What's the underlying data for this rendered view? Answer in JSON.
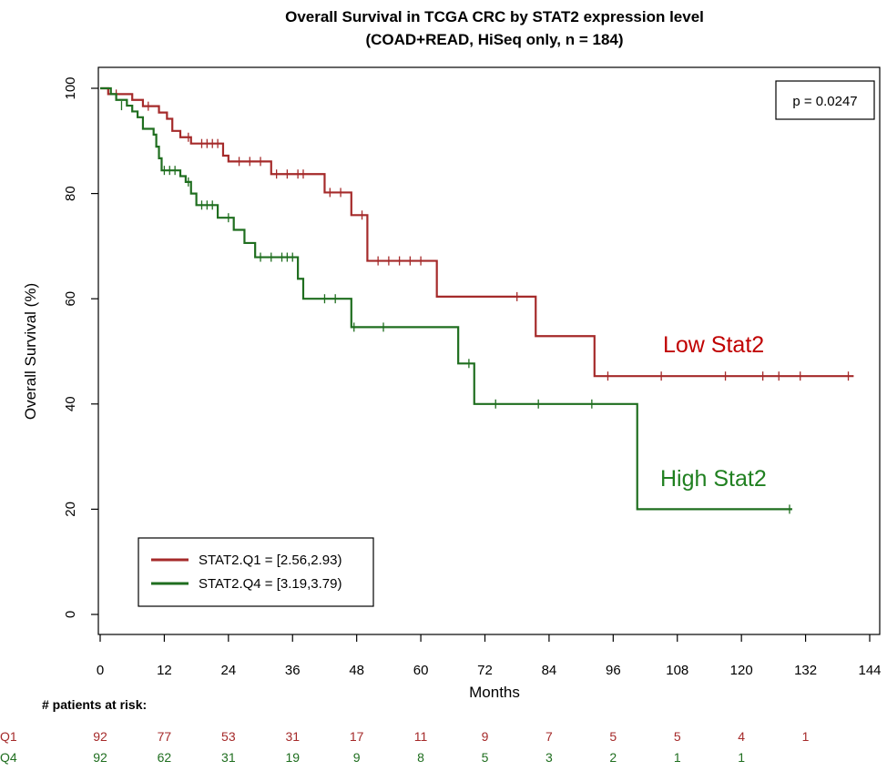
{
  "colors": {
    "low": "#a52a2a",
    "high": "#1f6e1f"
  },
  "chart_data": {
    "type": "line",
    "title_line1": "Overall Survival in TCGA CRC by STAT2 expression level",
    "title_line2": "(COAD+READ, HiSeq only, n = 184)",
    "xlabel": "Months",
    "ylabel": "Overall Survival (%)",
    "xlim": [
      0,
      144
    ],
    "ylim": [
      0,
      100
    ],
    "xticks": [
      0,
      12,
      24,
      36,
      48,
      60,
      72,
      84,
      96,
      108,
      120,
      132,
      144
    ],
    "yticks": [
      0,
      20,
      40,
      60,
      80,
      100
    ],
    "p_value": "p = 0.0247",
    "legend": [
      "STAT2.Q1 = [2.56,2.93)",
      "STAT2.Q4 = [3.19,3.79)"
    ],
    "legend_position": "bottom-left",
    "annotations": {
      "low": "Low Stat2",
      "high": "High Stat2"
    },
    "series": [
      {
        "name": "STAT2.Q1 = [2.56,2.93)",
        "color_key": "low",
        "steps": [
          [
            0,
            100
          ],
          [
            1.5,
            98.9
          ],
          [
            6,
            97.8
          ],
          [
            8,
            96.6
          ],
          [
            11,
            95.4
          ],
          [
            12.5,
            94.2
          ],
          [
            13.5,
            91.9
          ],
          [
            15,
            90.7
          ],
          [
            17,
            89.5
          ],
          [
            23,
            87.2
          ],
          [
            24,
            86.1
          ],
          [
            32,
            83.7
          ],
          [
            42,
            80.2
          ],
          [
            47,
            75.9
          ],
          [
            50,
            67.2
          ],
          [
            63,
            60.4
          ],
          [
            81.5,
            52.9
          ],
          [
            92.5,
            45.3
          ],
          [
            141,
            45.3
          ]
        ],
        "censors": [
          [
            3,
            98.9
          ],
          [
            9,
            96.6
          ],
          [
            16.5,
            90.7
          ],
          [
            19,
            89.5
          ],
          [
            20,
            89.5
          ],
          [
            21,
            89.5
          ],
          [
            22,
            89.5
          ],
          [
            26,
            86.1
          ],
          [
            28,
            86.1
          ],
          [
            30,
            86.1
          ],
          [
            33,
            83.7
          ],
          [
            35,
            83.7
          ],
          [
            37,
            83.7
          ],
          [
            38,
            83.7
          ],
          [
            43,
            80.2
          ],
          [
            45,
            80.2
          ],
          [
            49,
            75.9
          ],
          [
            52,
            67.2
          ],
          [
            54,
            67.2
          ],
          [
            56,
            67.2
          ],
          [
            58,
            67.2
          ],
          [
            60,
            67.2
          ],
          [
            78,
            60.4
          ],
          [
            95,
            45.3
          ],
          [
            105,
            45.3
          ],
          [
            117,
            45.3
          ],
          [
            124,
            45.3
          ],
          [
            127,
            45.3
          ],
          [
            131,
            45.3
          ],
          [
            140,
            45.3
          ]
        ],
        "at_risk_label": "Q1",
        "at_risk": [
          92,
          77,
          53,
          31,
          17,
          11,
          9,
          7,
          5,
          5,
          4,
          1
        ]
      },
      {
        "name": "STAT2.Q4 = [3.19,3.79)",
        "color_key": "high",
        "steps": [
          [
            0,
            100
          ],
          [
            2,
            98.9
          ],
          [
            3,
            97.8
          ],
          [
            5,
            96.7
          ],
          [
            6,
            95.6
          ],
          [
            7,
            94.5
          ],
          [
            8,
            92.3
          ],
          [
            10,
            91.2
          ],
          [
            10.5,
            88.9
          ],
          [
            11,
            86.7
          ],
          [
            11.5,
            84.4
          ],
          [
            15,
            83.3
          ],
          [
            16,
            82.2
          ],
          [
            17,
            80
          ],
          [
            18,
            77.8
          ],
          [
            22,
            75.4
          ],
          [
            25,
            73.1
          ],
          [
            27,
            70.6
          ],
          [
            29,
            67.9
          ],
          [
            37,
            63.8
          ],
          [
            38,
            60
          ],
          [
            47,
            54.6
          ],
          [
            67,
            47.7
          ],
          [
            70,
            40
          ],
          [
            100.5,
            20
          ],
          [
            129.5,
            20
          ]
        ],
        "censors": [
          [
            4,
            96.7
          ],
          [
            12,
            84.4
          ],
          [
            13,
            84.4
          ],
          [
            14,
            84.4
          ],
          [
            16.5,
            82.2
          ],
          [
            19,
            77.8
          ],
          [
            20,
            77.8
          ],
          [
            21,
            77.8
          ],
          [
            24,
            75.4
          ],
          [
            30,
            67.9
          ],
          [
            32,
            67.9
          ],
          [
            34,
            67.9
          ],
          [
            35,
            67.9
          ],
          [
            36,
            67.9
          ],
          [
            42,
            60
          ],
          [
            44,
            60
          ],
          [
            47.5,
            54.6
          ],
          [
            53,
            54.6
          ],
          [
            69,
            47.7
          ],
          [
            74,
            40
          ],
          [
            82,
            40
          ],
          [
            92,
            40
          ],
          [
            129,
            20
          ]
        ],
        "at_risk_label": "Q4",
        "at_risk": [
          92,
          62,
          31,
          19,
          9,
          8,
          5,
          3,
          2,
          1,
          1,
          ""
        ]
      }
    ],
    "at_risk_title": "# patients at risk:"
  }
}
